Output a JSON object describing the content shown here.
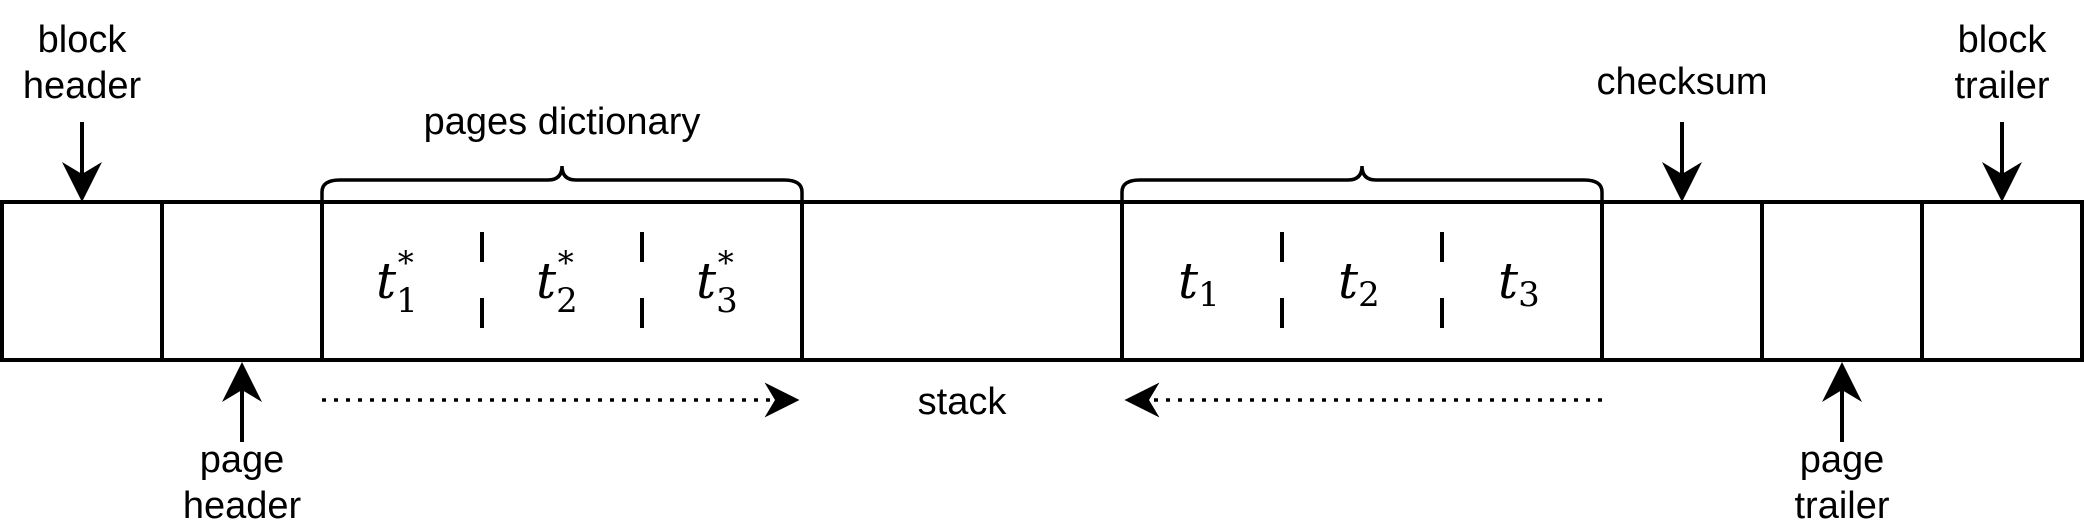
{
  "labels": {
    "block_header_line1": "block",
    "block_header_line2": "header",
    "page_header_line1": "page",
    "page_header_line2": "header",
    "pages_dictionary": "pages dictionary",
    "stack": "stack",
    "checksum": "checksum",
    "page_trailer_line1": "page",
    "page_trailer_line2": "trailer",
    "block_trailer_line1": "block",
    "block_trailer_line2": "trailer"
  },
  "dictionary_entries": [
    {
      "base": "t",
      "sub": "1",
      "sup": "*"
    },
    {
      "base": "t",
      "sub": "2",
      "sup": "*"
    },
    {
      "base": "t",
      "sub": "3",
      "sup": "*"
    }
  ],
  "tuple_entries": [
    {
      "base": "t",
      "sub": "1"
    },
    {
      "base": "t",
      "sub": "2"
    },
    {
      "base": "t",
      "sub": "3"
    }
  ],
  "colors": {
    "stroke": "#000000",
    "background": "#ffffff"
  }
}
